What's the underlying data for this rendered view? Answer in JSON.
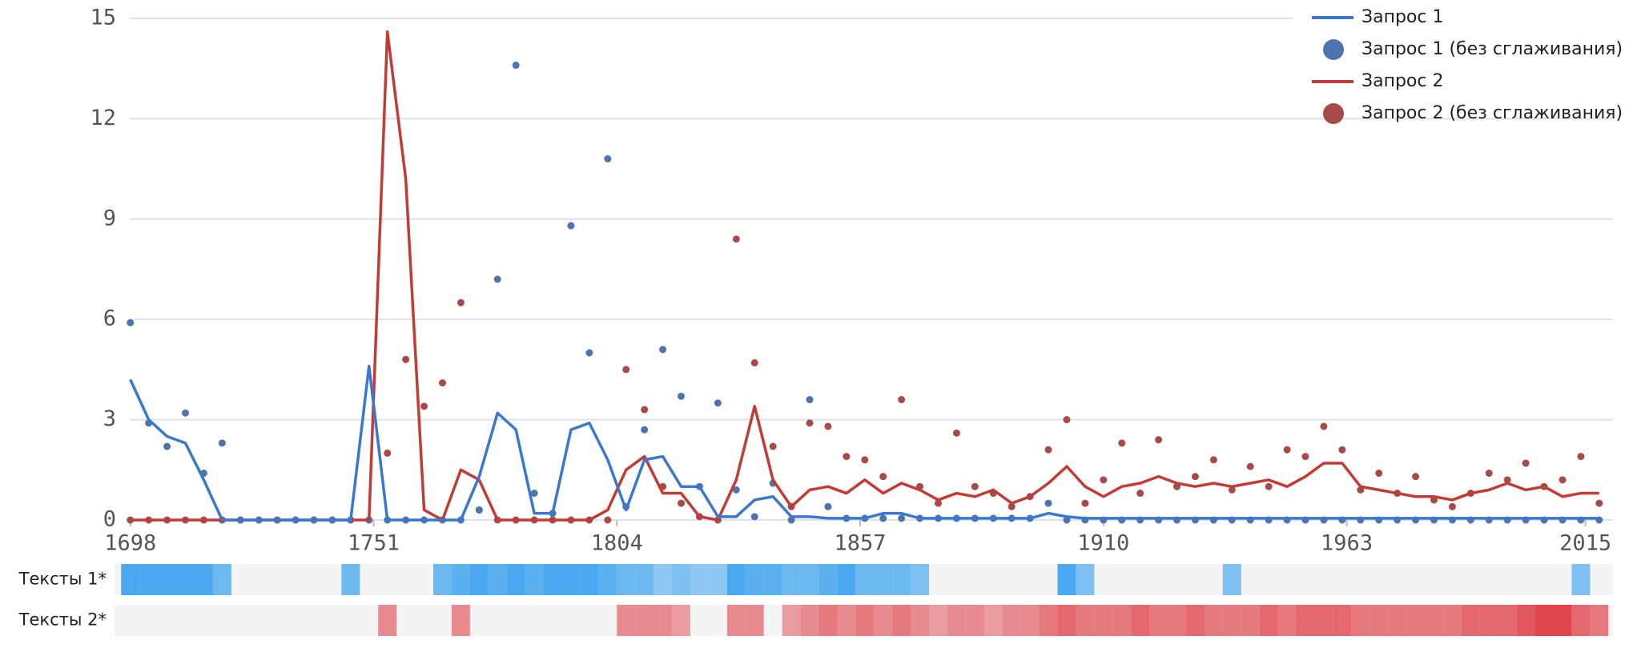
{
  "chart_data": {
    "type": "line",
    "x": [
      1698,
      1702,
      1706,
      1710,
      1714,
      1718,
      1722,
      1726,
      1730,
      1734,
      1738,
      1742,
      1746,
      1750,
      1754,
      1758,
      1762,
      1766,
      1770,
      1774,
      1778,
      1782,
      1786,
      1790,
      1794,
      1798,
      1802,
      1806,
      1810,
      1814,
      1818,
      1822,
      1826,
      1830,
      1834,
      1838,
      1842,
      1846,
      1850,
      1854,
      1858,
      1862,
      1866,
      1870,
      1874,
      1878,
      1882,
      1886,
      1890,
      1894,
      1898,
      1902,
      1906,
      1910,
      1914,
      1918,
      1922,
      1926,
      1930,
      1934,
      1938,
      1942,
      1946,
      1950,
      1954,
      1958,
      1962,
      1966,
      1970,
      1974,
      1978,
      1982,
      1986,
      1990,
      1994,
      1998,
      2002,
      2006,
      2010,
      2014,
      2018
    ],
    "xlim": [
      1697,
      2021
    ],
    "xticks": [
      1698,
      1751,
      1804,
      1857,
      1910,
      1963,
      2015
    ],
    "ylim": [
      0,
      15
    ],
    "yticks": [
      0,
      3,
      6,
      9,
      12,
      15
    ],
    "grid": true,
    "legend": "top-right",
    "series": [
      {
        "name": "Запрос 1",
        "style": "line",
        "color": "#3a78d0",
        "values": [
          4.2,
          3.0,
          2.5,
          2.3,
          1.2,
          0,
          0,
          0,
          0,
          0,
          0,
          0,
          0,
          4.6,
          0,
          0,
          0,
          0,
          0,
          1.3,
          3.2,
          2.7,
          0.2,
          0.2,
          2.7,
          2.9,
          1.8,
          0.3,
          1.8,
          1.9,
          1.0,
          1.0,
          0.1,
          0.1,
          0.6,
          0.7,
          0.1,
          0.1,
          0.05,
          0.05,
          0.05,
          0.2,
          0.2,
          0.05,
          0.05,
          0.05,
          0.05,
          0.05,
          0.05,
          0.05,
          0.2,
          0.1,
          0.05,
          0.05,
          0.05,
          0.05,
          0.05,
          0.05,
          0.05,
          0.05,
          0.05,
          0.05,
          0.05,
          0.05,
          0.05,
          0.05,
          0.05,
          0.05,
          0.05,
          0.05,
          0.05,
          0.05,
          0.05,
          0.05,
          0.05,
          0.05,
          0.05,
          0.05,
          0.05,
          0.05,
          0.05
        ]
      },
      {
        "name": "Запрос 1 (без сглаживания)",
        "style": "dots",
        "color": "#4e74b0",
        "values": [
          5.9,
          2.9,
          2.2,
          3.2,
          1.4,
          2.3,
          0,
          0,
          0,
          0,
          0,
          0,
          0,
          0,
          0,
          0,
          0,
          0,
          0,
          0.3,
          7.2,
          13.6,
          0.8,
          0.2,
          8.8,
          5.0,
          10.8,
          0.4,
          2.7,
          5.1,
          3.7,
          1.0,
          3.5,
          0.9,
          0.1,
          1.1,
          0,
          3.6,
          0.4,
          0.05,
          0.05,
          0.05,
          0.05,
          0.05,
          0.05,
          0.05,
          0.05,
          0.05,
          0.05,
          0.05,
          0.5,
          0,
          0,
          0,
          0,
          0,
          0,
          0,
          0,
          0,
          0,
          0,
          0,
          0,
          0,
          0,
          0,
          0,
          0,
          0,
          0,
          0,
          0,
          0,
          0,
          0,
          0,
          0,
          0,
          0,
          0
        ]
      },
      {
        "name": "Запрос 2",
        "style": "line",
        "color": "#c23b35",
        "values": [
          0,
          0,
          0,
          0,
          0,
          0,
          0,
          0,
          0,
          0,
          0,
          0,
          0,
          0,
          14.6,
          10.2,
          0.3,
          0,
          1.5,
          1.2,
          0,
          0,
          0,
          0,
          0,
          0,
          0.3,
          1.5,
          1.9,
          0.8,
          0.8,
          0.1,
          0,
          1.2,
          3.4,
          1.2,
          0.4,
          0.9,
          1.0,
          0.8,
          1.2,
          0.8,
          1.1,
          0.9,
          0.6,
          0.8,
          0.7,
          0.9,
          0.5,
          0.7,
          1.1,
          1.6,
          1.0,
          0.7,
          1.0,
          1.1,
          1.3,
          1.1,
          1.0,
          1.1,
          1.0,
          1.1,
          1.2,
          1.0,
          1.3,
          1.7,
          1.7,
          1.0,
          0.9,
          0.8,
          0.7,
          0.7,
          0.6,
          0.8,
          0.9,
          1.1,
          0.9,
          1.0,
          0.7,
          0.8,
          0.8
        ]
      },
      {
        "name": "Запрос 2 (без сглаживания)",
        "style": "dots",
        "color": "#a84b48",
        "values": [
          0,
          0,
          0,
          0,
          0,
          0,
          0,
          0,
          0,
          0,
          0,
          0,
          0,
          0,
          2.0,
          4.8,
          3.4,
          4.1,
          6.5,
          0.3,
          0,
          0,
          0,
          0,
          0,
          0,
          0,
          4.5,
          3.3,
          1.0,
          0.5,
          0.1,
          0,
          8.4,
          4.7,
          2.2,
          0.4,
          2.9,
          2.8,
          1.9,
          1.8,
          1.3,
          3.6,
          1.0,
          0.5,
          2.6,
          1.0,
          0.8,
          0.4,
          0.7,
          2.1,
          3.0,
          0.5,
          1.2,
          2.3,
          0.8,
          2.4,
          1.0,
          1.3,
          1.8,
          0.9,
          1.6,
          1.0,
          2.1,
          1.9,
          2.8,
          2.1,
          0.9,
          1.4,
          0.8,
          1.3,
          0.6,
          0.4,
          0.8,
          1.4,
          1.2,
          1.7,
          1.0,
          1.2,
          1.9,
          0.5
        ]
      }
    ],
    "strips": [
      {
        "label": "Тексты 1*",
        "color": "#4aa9f0",
        "values": [
          1,
          1,
          1,
          1,
          1,
          0.8,
          0,
          0,
          0,
          0,
          0,
          0,
          0.8,
          0,
          0,
          0,
          0,
          0.8,
          0.9,
          1,
          0.9,
          1,
          0.9,
          1,
          1,
          1,
          0.9,
          0.8,
          0.8,
          0.6,
          0.7,
          0.6,
          0.6,
          1,
          0.9,
          0.9,
          0.8,
          0.8,
          0.9,
          1,
          0.8,
          0.8,
          0.8,
          0.7,
          0,
          0,
          0,
          0,
          0,
          0,
          0,
          1,
          0.7,
          0,
          0,
          0,
          0,
          0,
          0,
          0,
          0.7,
          0,
          0,
          0,
          0,
          0,
          0,
          0,
          0,
          0,
          0,
          0,
          0,
          0,
          0,
          0,
          0,
          0,
          0,
          0.7,
          0
        ]
      },
      {
        "label": "Тексты 2*",
        "color": "#e0454c",
        "values": [
          0,
          0,
          0,
          0,
          0,
          0,
          0,
          0,
          0,
          0,
          0,
          0,
          0,
          0,
          0.6,
          0,
          0,
          0,
          0.6,
          0,
          0,
          0,
          0,
          0,
          0,
          0,
          0,
          0.6,
          0.6,
          0.6,
          0.5,
          0,
          0,
          0.6,
          0.6,
          0,
          0.5,
          0.6,
          0.7,
          0.6,
          0.7,
          0.6,
          0.7,
          0.6,
          0.5,
          0.6,
          0.6,
          0.5,
          0.6,
          0.6,
          0.7,
          0.8,
          0.7,
          0.7,
          0.7,
          0.8,
          0.7,
          0.7,
          0.8,
          0.7,
          0.7,
          0.7,
          0.8,
          0.7,
          0.8,
          0.8,
          0.8,
          0.7,
          0.7,
          0.7,
          0.7,
          0.7,
          0.7,
          0.8,
          0.8,
          0.8,
          0.9,
          1,
          1,
          0.8,
          0.7
        ]
      }
    ]
  }
}
